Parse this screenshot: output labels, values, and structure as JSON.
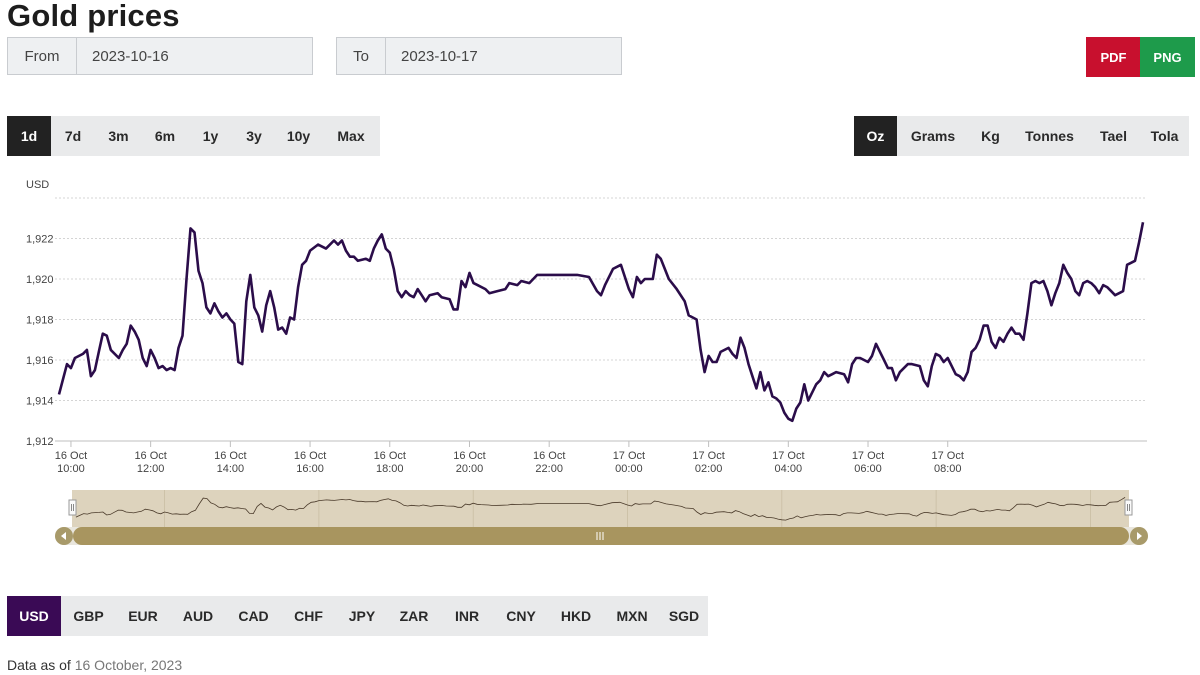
{
  "title": "Gold prices",
  "date_range": {
    "from_label": "From",
    "from_value": "2023-10-16",
    "to_label": "To",
    "to_value": "2023-10-17"
  },
  "export": {
    "pdf_label": "PDF",
    "png_label": "PNG",
    "pdf_color": "#c8102e",
    "png_color": "#1e9b4b"
  },
  "periods": {
    "items": [
      "1d",
      "7d",
      "3m",
      "6m",
      "1y",
      "3y",
      "10y",
      "Max"
    ],
    "active": "1d"
  },
  "units": {
    "items": [
      "Oz",
      "Grams",
      "Kg",
      "Tonnes",
      "Tael",
      "Tola"
    ],
    "active": "Oz"
  },
  "currencies": {
    "items": [
      "USD",
      "GBP",
      "EUR",
      "AUD",
      "CAD",
      "CHF",
      "JPY",
      "ZAR",
      "INR",
      "CNY",
      "HKD",
      "MXN",
      "SGD"
    ],
    "active": "USD",
    "active_color": "#3a0a55"
  },
  "footer": {
    "label": "Data as of",
    "date": "16 October, 2023"
  },
  "chart_data": {
    "type": "line",
    "ylabel": "USD",
    "ylim": [
      1912,
      1924
    ],
    "y_ticks": [
      "1,912",
      "1,914",
      "1,916",
      "1,918",
      "1,920",
      "1,922"
    ],
    "x_ticks": [
      {
        "date": "16 Oct",
        "time": "10:00"
      },
      {
        "date": "16 Oct",
        "time": "12:00"
      },
      {
        "date": "16 Oct",
        "time": "14:00"
      },
      {
        "date": "16 Oct",
        "time": "16:00"
      },
      {
        "date": "16 Oct",
        "time": "18:00"
      },
      {
        "date": "16 Oct",
        "time": "20:00"
      },
      {
        "date": "16 Oct",
        "time": "22:00"
      },
      {
        "date": "17 Oct",
        "time": "00:00"
      },
      {
        "date": "17 Oct",
        "time": "02:00"
      },
      {
        "date": "17 Oct",
        "time": "04:00"
      },
      {
        "date": "17 Oct",
        "time": "06:00"
      },
      {
        "date": "17 Oct",
        "time": "08:00"
      }
    ],
    "grid": true,
    "line_color": "#2b0d4a",
    "navigator": true,
    "series": [
      {
        "values": [
          [
            9.7,
            1914.3
          ],
          [
            9.9,
            1915.8
          ],
          [
            10.0,
            1915.6
          ],
          [
            10.1,
            1916.1
          ],
          [
            10.3,
            1916.3
          ],
          [
            10.4,
            1916.5
          ],
          [
            10.5,
            1915.2
          ],
          [
            10.6,
            1915.5
          ],
          [
            10.7,
            1916.4
          ],
          [
            10.8,
            1917.3
          ],
          [
            10.9,
            1917.2
          ],
          [
            11.0,
            1916.5
          ],
          [
            11.2,
            1916.1
          ],
          [
            11.3,
            1916.5
          ],
          [
            11.4,
            1916.8
          ],
          [
            11.5,
            1917.7
          ],
          [
            11.6,
            1917.4
          ],
          [
            11.7,
            1917.0
          ],
          [
            11.8,
            1916.1
          ],
          [
            11.9,
            1915.7
          ],
          [
            12.0,
            1916.5
          ],
          [
            12.1,
            1916.1
          ],
          [
            12.2,
            1915.6
          ],
          [
            12.3,
            1915.7
          ],
          [
            12.4,
            1915.5
          ],
          [
            12.5,
            1915.6
          ],
          [
            12.6,
            1915.5
          ],
          [
            12.7,
            1916.6
          ],
          [
            12.8,
            1917.2
          ],
          [
            12.9,
            1920.0
          ],
          [
            13.0,
            1922.5
          ],
          [
            13.1,
            1922.3
          ],
          [
            13.2,
            1920.4
          ],
          [
            13.3,
            1919.8
          ],
          [
            13.4,
            1918.6
          ],
          [
            13.5,
            1918.3
          ],
          [
            13.6,
            1918.8
          ],
          [
            13.7,
            1918.4
          ],
          [
            13.8,
            1918.1
          ],
          [
            13.9,
            1918.3
          ],
          [
            14.0,
            1918.0
          ],
          [
            14.1,
            1917.8
          ],
          [
            14.2,
            1915.9
          ],
          [
            14.3,
            1915.8
          ],
          [
            14.4,
            1918.9
          ],
          [
            14.5,
            1920.2
          ],
          [
            14.6,
            1918.6
          ],
          [
            14.7,
            1918.2
          ],
          [
            14.8,
            1917.4
          ],
          [
            14.9,
            1918.7
          ],
          [
            15.0,
            1919.4
          ],
          [
            15.1,
            1918.6
          ],
          [
            15.2,
            1917.5
          ],
          [
            15.3,
            1917.6
          ],
          [
            15.4,
            1917.3
          ],
          [
            15.5,
            1918.1
          ],
          [
            15.6,
            1918.0
          ],
          [
            15.7,
            1919.6
          ],
          [
            15.8,
            1920.7
          ],
          [
            15.9,
            1920.9
          ],
          [
            16.0,
            1921.4
          ],
          [
            16.2,
            1921.7
          ],
          [
            16.3,
            1921.6
          ],
          [
            16.4,
            1921.5
          ],
          [
            16.6,
            1921.9
          ],
          [
            16.7,
            1921.7
          ],
          [
            16.8,
            1921.9
          ],
          [
            16.9,
            1921.4
          ],
          [
            17.0,
            1921.1
          ],
          [
            17.1,
            1921.1
          ],
          [
            17.2,
            1920.9
          ],
          [
            17.4,
            1921.0
          ],
          [
            17.5,
            1920.9
          ],
          [
            17.6,
            1921.5
          ],
          [
            17.7,
            1921.9
          ],
          [
            17.8,
            1922.2
          ],
          [
            17.9,
            1921.5
          ],
          [
            18.0,
            1921.3
          ],
          [
            18.1,
            1920.5
          ],
          [
            18.2,
            1919.4
          ],
          [
            18.3,
            1919.1
          ],
          [
            18.4,
            1919.4
          ],
          [
            18.5,
            1919.2
          ],
          [
            18.6,
            1919.1
          ],
          [
            18.7,
            1919.5
          ],
          [
            18.8,
            1919.2
          ],
          [
            18.9,
            1918.9
          ],
          [
            19.0,
            1919.2
          ],
          [
            19.2,
            1919.3
          ],
          [
            19.3,
            1919.1
          ],
          [
            19.5,
            1919.0
          ],
          [
            19.6,
            1918.5
          ],
          [
            19.7,
            1918.5
          ],
          [
            19.8,
            1919.9
          ],
          [
            19.9,
            1919.6
          ],
          [
            20.0,
            1920.3
          ],
          [
            20.1,
            1919.8
          ],
          [
            20.2,
            1919.7
          ],
          [
            20.4,
            1919.5
          ],
          [
            20.5,
            1919.3
          ],
          [
            20.7,
            1919.4
          ],
          [
            20.9,
            1919.5
          ],
          [
            21.0,
            1919.8
          ],
          [
            21.2,
            1919.7
          ],
          [
            21.3,
            1919.9
          ],
          [
            21.5,
            1919.8
          ],
          [
            21.7,
            1920.2
          ],
          [
            22.0,
            1920.2
          ],
          [
            22.3,
            1920.2
          ],
          [
            22.7,
            1920.2
          ],
          [
            23.0,
            1920.1
          ],
          [
            23.2,
            1919.4
          ],
          [
            23.3,
            1919.2
          ],
          [
            23.4,
            1919.7
          ],
          [
            23.6,
            1920.5
          ],
          [
            23.8,
            1920.7
          ],
          [
            24.0,
            1919.5
          ],
          [
            24.1,
            1919.1
          ],
          [
            24.2,
            1920.1
          ],
          [
            24.3,
            1919.8
          ],
          [
            24.4,
            1920.0
          ],
          [
            24.6,
            1920.0
          ],
          [
            24.7,
            1921.2
          ],
          [
            24.8,
            1921.0
          ],
          [
            24.9,
            1920.5
          ],
          [
            25.0,
            1920.0
          ],
          [
            25.2,
            1919.5
          ],
          [
            25.4,
            1918.9
          ],
          [
            25.5,
            1918.2
          ],
          [
            25.7,
            1918.0
          ],
          [
            25.8,
            1916.5
          ],
          [
            25.9,
            1915.4
          ],
          [
            26.0,
            1916.2
          ],
          [
            26.1,
            1915.9
          ],
          [
            26.2,
            1915.9
          ],
          [
            26.3,
            1916.4
          ],
          [
            26.5,
            1916.6
          ],
          [
            26.6,
            1916.3
          ],
          [
            26.7,
            1916.1
          ],
          [
            26.8,
            1917.1
          ],
          [
            26.9,
            1916.6
          ],
          [
            27.0,
            1915.8
          ],
          [
            27.1,
            1915.2
          ],
          [
            27.2,
            1914.6
          ],
          [
            27.3,
            1915.4
          ],
          [
            27.4,
            1914.5
          ],
          [
            27.5,
            1914.9
          ],
          [
            27.6,
            1914.2
          ],
          [
            27.7,
            1914.1
          ],
          [
            27.8,
            1913.9
          ],
          [
            27.9,
            1913.4
          ],
          [
            28.0,
            1913.1
          ],
          [
            28.1,
            1913.0
          ],
          [
            28.2,
            1913.6
          ],
          [
            28.3,
            1913.9
          ],
          [
            28.4,
            1914.8
          ],
          [
            28.5,
            1914.0
          ],
          [
            28.6,
            1914.4
          ],
          [
            28.7,
            1914.8
          ],
          [
            28.8,
            1915.0
          ],
          [
            28.9,
            1915.4
          ],
          [
            29.0,
            1915.2
          ],
          [
            29.1,
            1915.3
          ],
          [
            29.2,
            1915.4
          ],
          [
            29.4,
            1915.3
          ],
          [
            29.5,
            1914.9
          ],
          [
            29.6,
            1915.8
          ],
          [
            29.7,
            1916.1
          ],
          [
            29.8,
            1916.1
          ],
          [
            30.0,
            1915.9
          ],
          [
            30.1,
            1916.2
          ],
          [
            30.2,
            1916.8
          ],
          [
            30.3,
            1916.4
          ],
          [
            30.4,
            1916.0
          ],
          [
            30.5,
            1915.6
          ],
          [
            30.6,
            1915.6
          ],
          [
            30.7,
            1915.0
          ],
          [
            30.8,
            1915.4
          ],
          [
            30.9,
            1915.6
          ],
          [
            31.0,
            1915.8
          ],
          [
            31.1,
            1915.8
          ],
          [
            31.3,
            1915.7
          ],
          [
            31.4,
            1915.0
          ],
          [
            31.5,
            1914.7
          ],
          [
            31.6,
            1915.7
          ],
          [
            31.7,
            1916.3
          ],
          [
            31.8,
            1916.2
          ],
          [
            31.9,
            1915.9
          ],
          [
            32.0,
            1916.1
          ],
          [
            32.1,
            1915.7
          ],
          [
            32.2,
            1915.3
          ],
          [
            32.3,
            1915.2
          ],
          [
            32.4,
            1915.0
          ],
          [
            32.5,
            1915.4
          ],
          [
            32.6,
            1916.4
          ],
          [
            32.7,
            1916.6
          ],
          [
            32.8,
            1917.0
          ],
          [
            32.9,
            1917.7
          ],
          [
            33.0,
            1917.7
          ],
          [
            33.1,
            1916.9
          ],
          [
            33.2,
            1916.6
          ],
          [
            33.3,
            1917.1
          ],
          [
            33.4,
            1916.9
          ],
          [
            33.5,
            1917.3
          ],
          [
            33.6,
            1917.6
          ],
          [
            33.7,
            1917.3
          ],
          [
            33.8,
            1917.3
          ],
          [
            33.9,
            1917.0
          ],
          [
            34.0,
            1918.3
          ],
          [
            34.1,
            1919.8
          ],
          [
            34.2,
            1919.9
          ],
          [
            34.3,
            1919.8
          ],
          [
            34.4,
            1919.9
          ],
          [
            34.5,
            1919.4
          ],
          [
            34.6,
            1918.7
          ],
          [
            34.7,
            1919.3
          ],
          [
            34.8,
            1919.8
          ],
          [
            34.9,
            1920.7
          ],
          [
            35.0,
            1920.3
          ],
          [
            35.1,
            1920.0
          ],
          [
            35.2,
            1919.4
          ],
          [
            35.3,
            1919.2
          ],
          [
            35.4,
            1919.8
          ],
          [
            35.5,
            1919.9
          ],
          [
            35.6,
            1919.8
          ],
          [
            35.7,
            1919.6
          ],
          [
            35.8,
            1919.3
          ],
          [
            35.9,
            1919.7
          ],
          [
            36.0,
            1919.6
          ],
          [
            36.1,
            1919.4
          ],
          [
            36.2,
            1919.2
          ],
          [
            36.3,
            1919.3
          ],
          [
            36.4,
            1919.4
          ],
          [
            36.5,
            1920.7
          ],
          [
            36.6,
            1920.8
          ],
          [
            36.7,
            1920.9
          ],
          [
            36.8,
            1921.8
          ],
          [
            36.9,
            1922.8
          ]
        ]
      }
    ]
  }
}
